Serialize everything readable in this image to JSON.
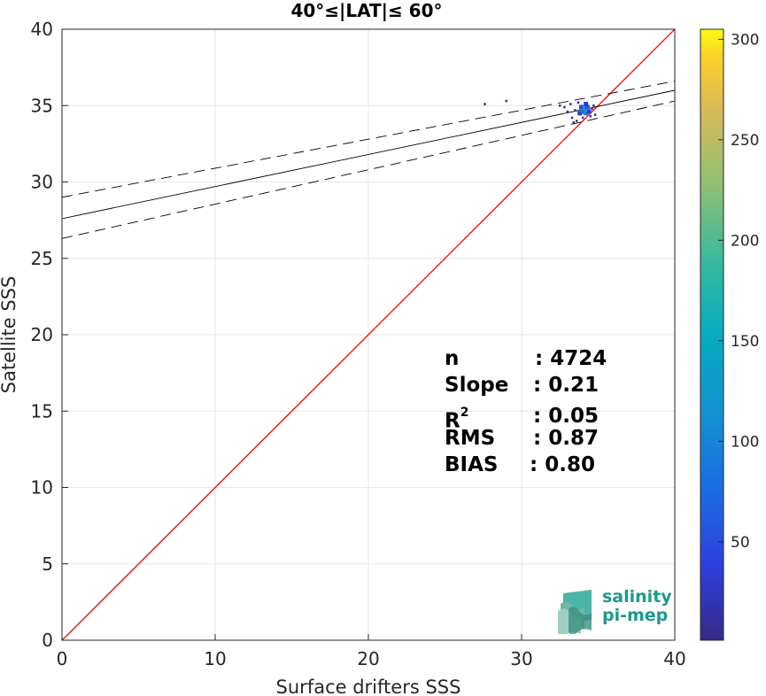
{
  "chart_data": {
    "type": "scatter",
    "title": "40°≤|LAT|≤ 60°",
    "xlabel": "Surface drifters SSS",
    "ylabel": "Satellite SSS",
    "xlim": [
      0,
      40
    ],
    "ylim": [
      0,
      40
    ],
    "xticks": [
      0,
      10,
      20,
      30,
      40
    ],
    "yticks": [
      0,
      5,
      10,
      15,
      20,
      25,
      30,
      35,
      40
    ],
    "grid": true,
    "colorbar": {
      "colormap": "parula",
      "ticks": [
        50,
        100,
        150,
        200,
        250,
        300
      ],
      "range": [
        1,
        305
      ]
    },
    "identity_line": {
      "from": [
        0,
        0
      ],
      "to": [
        40,
        40
      ],
      "color": "#ff0000"
    },
    "fit_line": {
      "slope": 0.21,
      "intercept": 27.6,
      "color": "#000000"
    },
    "fit_band_upper": {
      "slope": 0.19,
      "intercept": 29.0
    },
    "fit_band_lower": {
      "slope": 0.225,
      "intercept": 26.3
    },
    "density_points": [
      {
        "x": 27.6,
        "y": 35.1,
        "count": 1
      },
      {
        "x": 29.0,
        "y": 35.3,
        "count": 1
      },
      {
        "x": 32.5,
        "y": 35.0,
        "count": 2
      },
      {
        "x": 32.8,
        "y": 34.9,
        "count": 3
      },
      {
        "x": 33.0,
        "y": 34.6,
        "count": 2
      },
      {
        "x": 33.2,
        "y": 35.1,
        "count": 4
      },
      {
        "x": 33.3,
        "y": 34.2,
        "count": 2
      },
      {
        "x": 33.5,
        "y": 34.7,
        "count": 10
      },
      {
        "x": 33.6,
        "y": 34.0,
        "count": 3
      },
      {
        "x": 33.7,
        "y": 35.2,
        "count": 8
      },
      {
        "x": 33.8,
        "y": 34.5,
        "count": 30
      },
      {
        "x": 33.9,
        "y": 34.9,
        "count": 45
      },
      {
        "x": 34.0,
        "y": 34.6,
        "count": 80
      },
      {
        "x": 34.1,
        "y": 34.8,
        "count": 110
      },
      {
        "x": 34.2,
        "y": 34.5,
        "count": 95
      },
      {
        "x": 34.3,
        "y": 34.9,
        "count": 60
      },
      {
        "x": 34.4,
        "y": 34.6,
        "count": 40
      },
      {
        "x": 34.5,
        "y": 34.3,
        "count": 15
      },
      {
        "x": 34.6,
        "y": 34.8,
        "count": 8
      },
      {
        "x": 34.7,
        "y": 35.0,
        "count": 4
      },
      {
        "x": 34.0,
        "y": 34.2,
        "count": 20
      },
      {
        "x": 34.2,
        "y": 35.1,
        "count": 25
      },
      {
        "x": 33.4,
        "y": 33.9,
        "count": 2
      },
      {
        "x": 34.8,
        "y": 34.4,
        "count": 3
      }
    ],
    "stats": [
      {
        "key": "n",
        "value": ": 4724"
      },
      {
        "key": "Slope",
        "value": ": 0.21"
      },
      {
        "key": "R",
        "sup": "2",
        "value": ": 0.05"
      },
      {
        "key": "RMS",
        "value": ": 0.87"
      },
      {
        "key": "BIAS",
        "value": ": 0.80"
      }
    ]
  },
  "logo": {
    "line1": "salinity",
    "line2": "pi-mep",
    "color": "#1a9b8c"
  }
}
